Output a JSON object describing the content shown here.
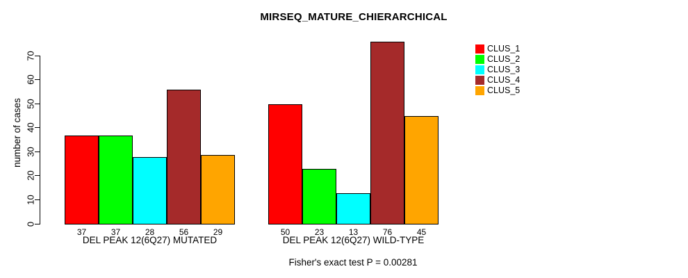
{
  "chart_data": {
    "type": "bar",
    "title": "MIRSEQ_MATURE_CHIERARCHICAL",
    "ylabel": "number of cases",
    "xlabel": "",
    "ylim": [
      0,
      70
    ],
    "yticks": [
      0,
      10,
      20,
      30,
      40,
      50,
      60,
      70
    ],
    "grid": false,
    "legend_position": "top-right",
    "categories": [
      "DEL PEAK 12(6Q27) MUTATED",
      "DEL PEAK 12(6Q27) WILD-TYPE"
    ],
    "series": [
      {
        "name": "CLUS_1",
        "color": "#FF0000",
        "values": [
          37,
          50
        ]
      },
      {
        "name": "CLUS_2",
        "color": "#00FF00",
        "values": [
          37,
          23
        ]
      },
      {
        "name": "CLUS_3",
        "color": "#00FFFF",
        "values": [
          28,
          13
        ]
      },
      {
        "name": "CLUS_4",
        "color": "#A52A2A",
        "values": [
          56,
          76
        ]
      },
      {
        "name": "CLUS_5",
        "color": "#FFA500",
        "values": [
          29,
          45
        ]
      }
    ],
    "bar_value_labels": [
      [
        37,
        37,
        28,
        56,
        29
      ],
      [
        50,
        23,
        13,
        76,
        45
      ]
    ],
    "annotation": "Fisher's exact test P = 0.00281"
  }
}
